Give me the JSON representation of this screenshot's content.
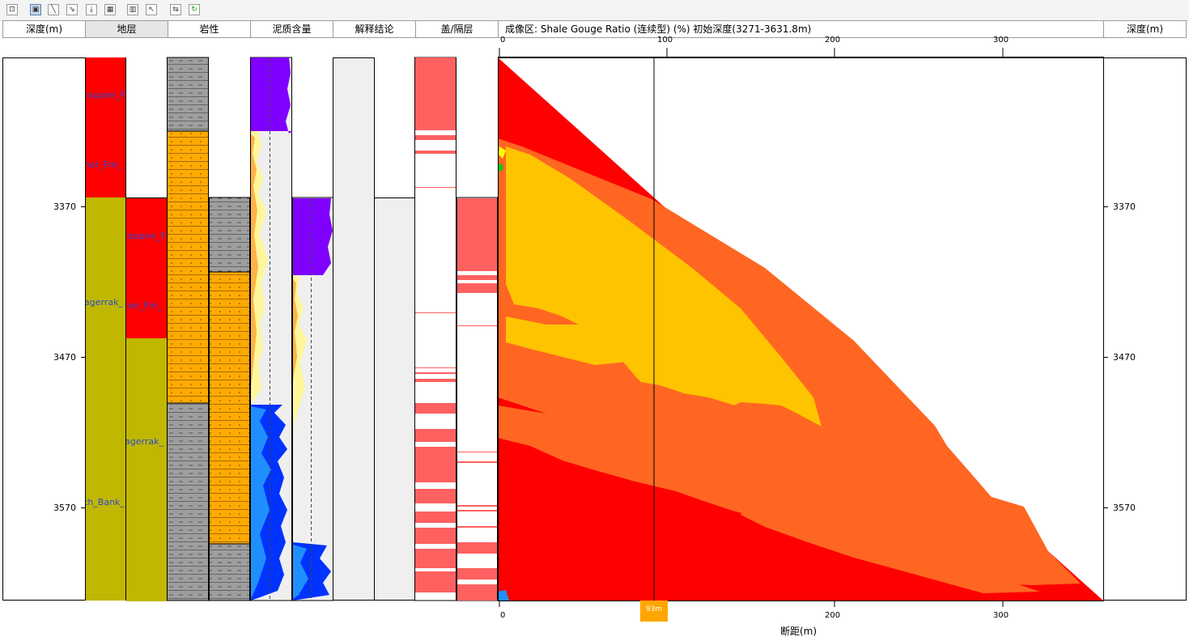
{
  "toolbar": {
    "buttons": [
      {
        "name": "zoom-fit-icon"
      },
      {
        "name": "layout-icon"
      },
      {
        "name": "draw-line-icon"
      },
      {
        "name": "erase-line-icon"
      },
      {
        "name": "import-icon"
      },
      {
        "name": "grid-icon"
      },
      {
        "name": "panel-icon"
      },
      {
        "name": "pointer-tool-icon"
      },
      {
        "name": "swap-icon"
      },
      {
        "name": "refresh-icon"
      }
    ]
  },
  "header": {
    "depth_left": "深度(m)",
    "formation": "地层",
    "lithology": "岩性",
    "shale_content": "泥质含量",
    "interpretation": "解释结论",
    "cap_barrier": "盖/隔层",
    "image_title": "成像区: Shale Gouge Ratio (连续型) (%)  初始深度(3271-3631.8m)",
    "depth_right": "深度(m)"
  },
  "depth_ticks": [
    "3370",
    "3470",
    "3570"
  ],
  "formations_left": [
    "raupne_F",
    "her_Fm_",
    "agerrak_",
    "th_Bank_"
  ],
  "formations_right": [
    "raupne_F",
    "her_Fm_",
    "agerrak_"
  ],
  "top_axis_labels": [
    "0",
    "100",
    "200",
    "300"
  ],
  "bottom_axis_labels": [
    "0",
    "200",
    "300"
  ],
  "bottom_axis_title": "断距(m)",
  "cursor_value": "93m",
  "colors": {
    "red": "#ff0000",
    "orange": "#ff6622",
    "yellow": "#ffc400",
    "olive": "#c0b700",
    "cap_pink": "#ff6060",
    "purple": "#7f00ff",
    "gray_lith": "#9e9e9e",
    "orange_lith": "#ffaa00",
    "cursor_badge": "#ffa500"
  }
}
